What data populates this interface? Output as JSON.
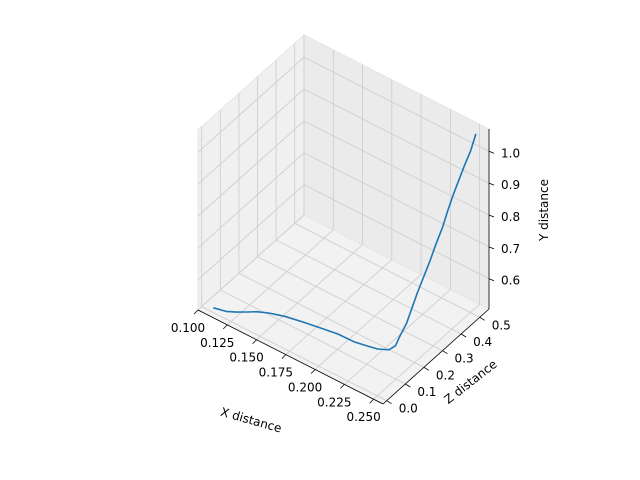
{
  "chart_data": {
    "type": "line3d",
    "title": "",
    "xlabel": "X distance",
    "zlabel": "Z distance",
    "ylabel": "Y distance",
    "x_ticks": [
      "0.100",
      "0.125",
      "0.150",
      "0.175",
      "0.200",
      "0.225",
      "0.250"
    ],
    "z_ticks": [
      "0.0",
      "0.1",
      "0.2",
      "0.3",
      "0.4",
      "0.5"
    ],
    "y_ticks": [
      "0.6",
      "0.7",
      "0.8",
      "0.9",
      "1.0"
    ],
    "grid": true,
    "line_color": "#1f77b4",
    "pane_color": "#f2f2f2",
    "series": [
      {
        "points": [
          {
            "x": 0.11,
            "z": 0.0,
            "y": 0.52
          },
          {
            "x": 0.12,
            "z": 0.005,
            "y": 0.525
          },
          {
            "x": 0.128,
            "z": 0.01,
            "y": 0.535
          },
          {
            "x": 0.136,
            "z": 0.02,
            "y": 0.545
          },
          {
            "x": 0.142,
            "z": 0.03,
            "y": 0.552
          },
          {
            "x": 0.15,
            "z": 0.045,
            "y": 0.555
          },
          {
            "x": 0.16,
            "z": 0.065,
            "y": 0.553
          },
          {
            "x": 0.172,
            "z": 0.085,
            "y": 0.548
          },
          {
            "x": 0.185,
            "z": 0.1,
            "y": 0.545
          },
          {
            "x": 0.198,
            "z": 0.115,
            "y": 0.542
          },
          {
            "x": 0.21,
            "z": 0.125,
            "y": 0.535
          },
          {
            "x": 0.22,
            "z": 0.135,
            "y": 0.535
          },
          {
            "x": 0.228,
            "z": 0.14,
            "y": 0.538
          },
          {
            "x": 0.236,
            "z": 0.15,
            "y": 0.545
          },
          {
            "x": 0.24,
            "z": 0.16,
            "y": 0.56
          },
          {
            "x": 0.242,
            "z": 0.175,
            "y": 0.59
          },
          {
            "x": 0.244,
            "z": 0.195,
            "y": 0.62
          },
          {
            "x": 0.245,
            "z": 0.215,
            "y": 0.655
          },
          {
            "x": 0.246,
            "z": 0.24,
            "y": 0.695
          },
          {
            "x": 0.247,
            "z": 0.265,
            "y": 0.73
          },
          {
            "x": 0.248,
            "z": 0.295,
            "y": 0.77
          },
          {
            "x": 0.249,
            "z": 0.32,
            "y": 0.81
          },
          {
            "x": 0.25,
            "z": 0.35,
            "y": 0.85
          },
          {
            "x": 0.25,
            "z": 0.38,
            "y": 0.89
          },
          {
            "x": 0.25,
            "z": 0.41,
            "y": 0.925
          },
          {
            "x": 0.25,
            "z": 0.44,
            "y": 0.955
          },
          {
            "x": 0.25,
            "z": 0.47,
            "y": 0.985
          },
          {
            "x": 0.25,
            "z": 0.5,
            "y": 1.01
          },
          {
            "x": 0.25,
            "z": 0.53,
            "y": 1.05
          }
        ]
      }
    ]
  }
}
